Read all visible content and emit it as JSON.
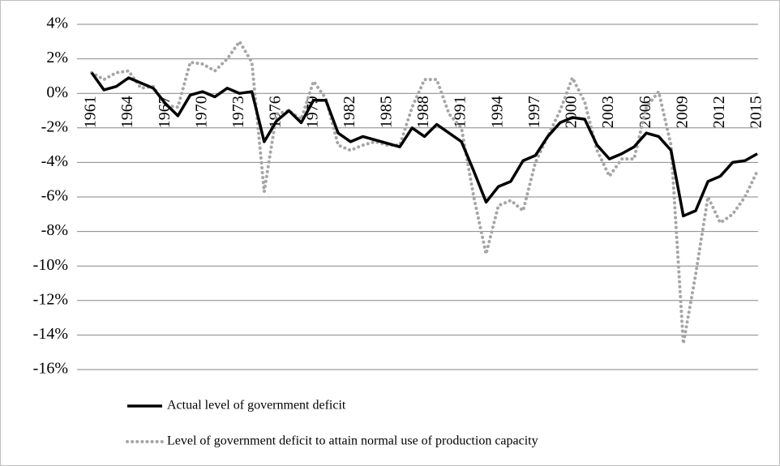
{
  "chart_data": {
    "type": "line",
    "categories": [
      "1961",
      null,
      null,
      "1964",
      null,
      null,
      "1967",
      null,
      null,
      "1970",
      null,
      null,
      "1973",
      null,
      null,
      "1976",
      null,
      null,
      "1979",
      null,
      null,
      "1982",
      null,
      null,
      "1985",
      null,
      null,
      "1988",
      null,
      null,
      "1991",
      null,
      null,
      "1994",
      null,
      null,
      "1997",
      null,
      null,
      "2000",
      null,
      null,
      "2003",
      null,
      null,
      "2006",
      null,
      null,
      "2009",
      null,
      null,
      "2012",
      null,
      null,
      "2015"
    ],
    "series": [
      {
        "name": "Actual level of government deficit",
        "color": "#000000",
        "style": "solid",
        "values": [
          1.2,
          0.2,
          0.4,
          0.9,
          0.6,
          0.3,
          -0.6,
          -1.3,
          -0.1,
          0.1,
          -0.2,
          0.3,
          0.0,
          0.1,
          -2.8,
          -1.6,
          -1.0,
          -1.7,
          -0.4,
          -0.4,
          -2.3,
          -2.8,
          -2.5,
          -2.7,
          -2.9,
          -3.1,
          -2.0,
          -2.5,
          -1.8,
          -2.3,
          -2.8,
          -4.5,
          -6.3,
          -5.4,
          -5.1,
          -3.9,
          -3.6,
          -2.5,
          -1.7,
          -1.4,
          -1.5,
          -3.0,
          -3.8,
          -3.5,
          -3.1,
          -2.3,
          -2.5,
          -3.3,
          -7.1,
          -6.8,
          -5.1,
          -4.8,
          -4.0,
          -3.9,
          -3.5
        ]
      },
      {
        "name": "Level of government deficit to attain normal use of production capacity",
        "color": "#a6a6a6",
        "style": "dotted",
        "values": [
          1.2,
          0.8,
          1.2,
          1.3,
          0.3,
          0.4,
          -0.7,
          -0.8,
          1.8,
          1.7,
          1.3,
          2.0,
          3.0,
          1.8,
          -5.7,
          -1.2,
          -1.0,
          -1.5,
          0.7,
          -0.3,
          -3.0,
          -3.3,
          -3.0,
          -2.8,
          -3.0,
          -3.0,
          -0.8,
          0.8,
          0.8,
          -1.2,
          -2.0,
          -6.0,
          -9.3,
          -6.5,
          -6.2,
          -6.8,
          -4.0,
          -2.5,
          -1.0,
          0.9,
          -0.5,
          -3.3,
          -4.8,
          -3.8,
          -3.8,
          -0.8,
          0.1,
          -3.0,
          -14.5,
          -10.5,
          -6.0,
          -7.5,
          -7.0,
          -6.0,
          -4.5
        ]
      }
    ],
    "ylim": [
      -16,
      4
    ],
    "yticks": [
      {
        "value": -16,
        "label": "-16%"
      },
      {
        "value": -14,
        "label": "-14%"
      },
      {
        "value": -12,
        "label": "-12%"
      },
      {
        "value": -10,
        "label": "-10%"
      },
      {
        "value": -8,
        "label": "-8%"
      },
      {
        "value": -6,
        "label": "-6%"
      },
      {
        "value": -4,
        "label": "-4%"
      },
      {
        "value": -2,
        "label": "-2%"
      },
      {
        "value": 0,
        "label": "0%"
      },
      {
        "value": 2,
        "label": "2%"
      },
      {
        "value": 4,
        "label": "4%"
      }
    ],
    "grid": true,
    "legend": "bottom"
  }
}
